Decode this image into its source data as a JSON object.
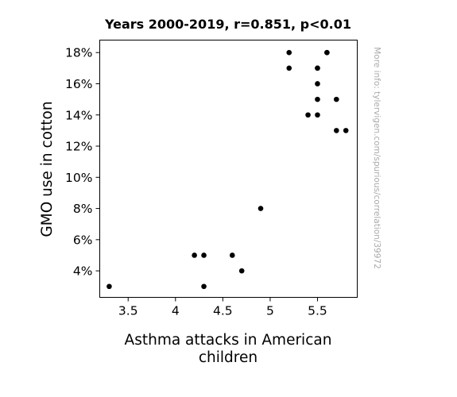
{
  "chart_data": {
    "type": "scatter",
    "title": "Years 2000-2019, r=0.851, p<0.01",
    "xlabel_lines": [
      "Asthma attacks in American",
      "children"
    ],
    "ylabel": "GMO use in cotton",
    "xlim": [
      3.2,
      5.92
    ],
    "ylim": [
      2.3,
      18.8
    ],
    "xticks": [
      3.5,
      4,
      4.5,
      5,
      5.5
    ],
    "xtick_labels": [
      "3.5",
      "4",
      "4.5",
      "5",
      "5.5"
    ],
    "yticks": [
      4,
      6,
      8,
      10,
      12,
      14,
      16,
      18
    ],
    "ytick_labels": [
      "4%",
      "6%",
      "8%",
      "10%",
      "12%",
      "14%",
      "16%",
      "18%"
    ],
    "watermark": "More info: tylervigen.com/spurious/correlation/39972",
    "marker_color": "#000000",
    "points": [
      {
        "x": 3.3,
        "y": 3
      },
      {
        "x": 4.2,
        "y": 5
      },
      {
        "x": 4.3,
        "y": 5
      },
      {
        "x": 4.3,
        "y": 3
      },
      {
        "x": 4.6,
        "y": 5
      },
      {
        "x": 4.7,
        "y": 4
      },
      {
        "x": 4.9,
        "y": 8
      },
      {
        "x": 5.2,
        "y": 18
      },
      {
        "x": 5.2,
        "y": 17
      },
      {
        "x": 5.4,
        "y": 14
      },
      {
        "x": 5.5,
        "y": 17
      },
      {
        "x": 5.5,
        "y": 17
      },
      {
        "x": 5.5,
        "y": 16
      },
      {
        "x": 5.5,
        "y": 15
      },
      {
        "x": 5.5,
        "y": 14
      },
      {
        "x": 5.6,
        "y": 18
      },
      {
        "x": 5.6,
        "y": 18
      },
      {
        "x": 5.7,
        "y": 15
      },
      {
        "x": 5.7,
        "y": 13
      },
      {
        "x": 5.8,
        "y": 13
      }
    ]
  }
}
